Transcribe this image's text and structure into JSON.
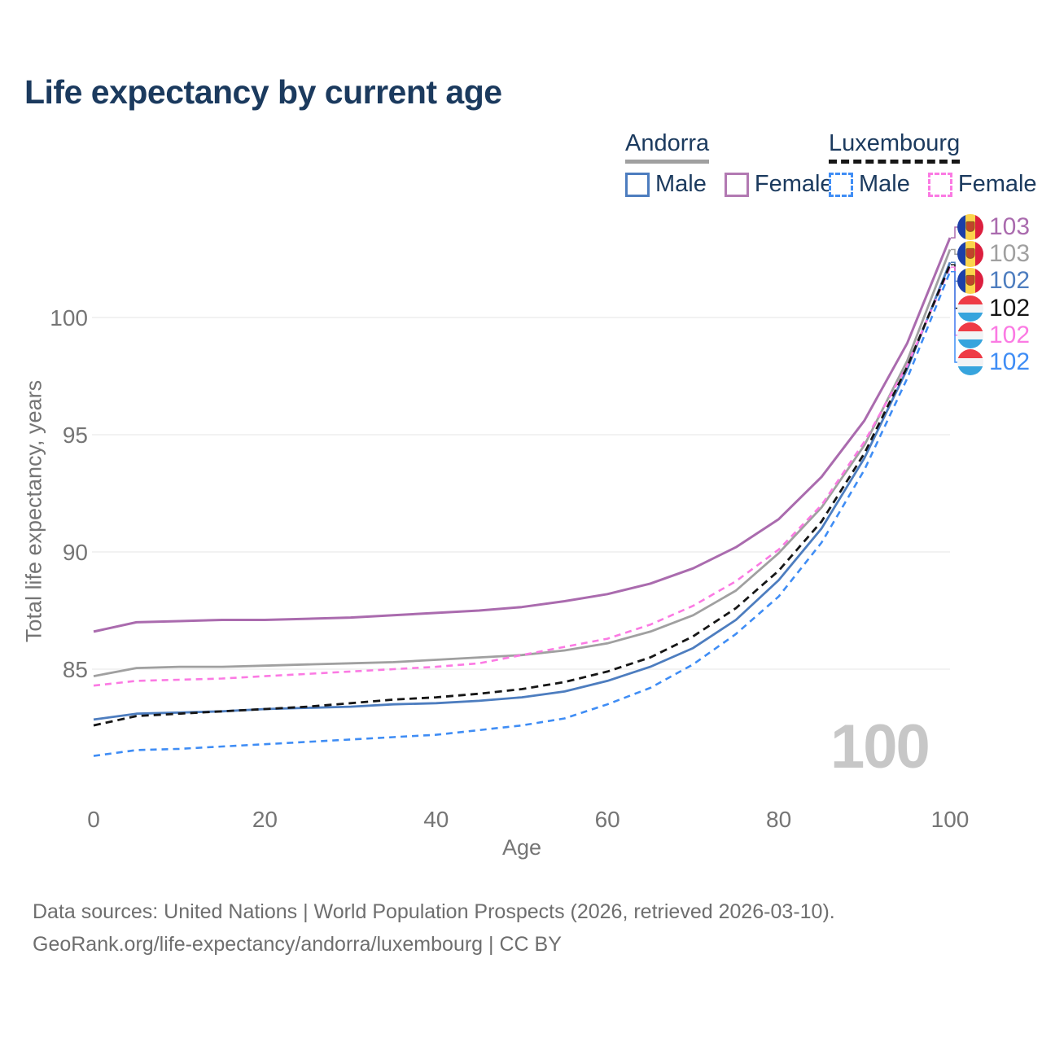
{
  "title": "Life expectancy by current age",
  "watermark": "100",
  "legend": {
    "groups": [
      {
        "label": "Andorra",
        "style": "solid",
        "underline_color": "#a0a0a0",
        "items": [
          {
            "label": "Male",
            "color": "#4d7dbf",
            "dashed": false
          },
          {
            "label": "Female",
            "color": "#b279b2",
            "dashed": false
          }
        ]
      },
      {
        "label": "Luxembourg",
        "style": "dashed",
        "underline_color": "#161616",
        "items": [
          {
            "label": "Male",
            "color": "#3f8df5",
            "dashed": true
          },
          {
            "label": "Female",
            "color": "#fb7ae3",
            "dashed": true
          }
        ]
      }
    ]
  },
  "footer": {
    "line1": "Data sources: United Nations | World Population Prospects (2026, retrieved 2026-03-10).",
    "line2": "GeoRank.org/life-expectancy/andorra/luxembourg | CC BY"
  },
  "chart_data": {
    "type": "line",
    "title": "Life expectancy by current age",
    "xlabel": "Age",
    "ylabel": "Total life expectancy, years",
    "x_ticks": [
      0,
      20,
      40,
      60,
      80,
      100
    ],
    "y_ticks": [
      85,
      90,
      95,
      100
    ],
    "xlim": [
      0,
      100
    ],
    "ylim": [
      81,
      104
    ],
    "grid": "horizontal-only",
    "gridline_color": "#ededed",
    "axis_text_color": "#757575",
    "x": [
      0,
      5,
      10,
      15,
      20,
      25,
      30,
      35,
      40,
      45,
      50,
      55,
      60,
      65,
      70,
      75,
      80,
      85,
      90,
      95,
      100
    ],
    "series": [
      {
        "id": "andorra-all",
        "name": "Andorra",
        "country": "Andorra",
        "sex": "All",
        "color": "#a0a0a0",
        "dash": null,
        "width": 2.8,
        "values": [
          84.7,
          85.05,
          85.1,
          85.1,
          85.15,
          85.2,
          85.25,
          85.3,
          85.4,
          85.5,
          85.6,
          85.8,
          86.1,
          86.6,
          87.3,
          88.35,
          89.95,
          91.9,
          94.55,
          98.15,
          102.9
        ]
      },
      {
        "id": "andorra-female",
        "name": "Andorra Female",
        "country": "Andorra",
        "sex": "Female",
        "color": "#aa6bae",
        "dash": null,
        "width": 3,
        "values": [
          86.6,
          87.0,
          87.05,
          87.1,
          87.1,
          87.15,
          87.2,
          87.3,
          87.4,
          87.5,
          87.65,
          87.9,
          88.2,
          88.65,
          89.3,
          90.2,
          91.4,
          93.2,
          95.6,
          98.9,
          103.4
        ]
      },
      {
        "id": "andorra-male",
        "name": "Andorra Male",
        "country": "Andorra",
        "sex": "Male",
        "color": "#4d7dbf",
        "dash": null,
        "width": 2.8,
        "values": [
          82.85,
          83.1,
          83.15,
          83.2,
          83.3,
          83.35,
          83.4,
          83.5,
          83.55,
          83.65,
          83.8,
          84.05,
          84.5,
          85.1,
          85.9,
          87.1,
          88.8,
          91.0,
          94.0,
          97.8,
          102.35
        ]
      },
      {
        "id": "luxembourg-female",
        "name": "Luxembourg Female",
        "country": "Luxembourg",
        "sex": "Female",
        "color": "#fb7ae3",
        "dash": "8 6",
        "width": 2.6,
        "values": [
          84.3,
          84.5,
          84.55,
          84.6,
          84.7,
          84.8,
          84.9,
          85.0,
          85.1,
          85.25,
          85.6,
          85.95,
          86.3,
          86.9,
          87.7,
          88.75,
          90.1,
          92.0,
          94.7,
          97.95,
          102.15
        ]
      },
      {
        "id": "luxembourg-all",
        "name": "Luxembourg",
        "country": "Luxembourg",
        "sex": "All",
        "color": "#161616",
        "dash": "9 6",
        "width": 2.8,
        "values": [
          82.6,
          83.0,
          83.1,
          83.2,
          83.3,
          83.4,
          83.55,
          83.7,
          83.8,
          83.95,
          84.15,
          84.45,
          84.9,
          85.5,
          86.4,
          87.6,
          89.2,
          91.3,
          94.2,
          97.9,
          102.25
        ]
      },
      {
        "id": "luxembourg-male",
        "name": "Luxembourg Male",
        "country": "Luxembourg",
        "sex": "Male",
        "color": "#3f8df5",
        "dash": "8 6",
        "width": 2.6,
        "values": [
          81.3,
          81.55,
          81.6,
          81.7,
          81.8,
          81.9,
          82.0,
          82.1,
          82.2,
          82.4,
          82.6,
          82.9,
          83.5,
          84.2,
          85.2,
          86.5,
          88.1,
          90.4,
          93.5,
          97.4,
          101.95
        ]
      }
    ],
    "end_labels": [
      {
        "series_id": "andorra-female",
        "value": "103",
        "flag": "andorra",
        "color": "#aa6bae"
      },
      {
        "series_id": "andorra-all",
        "value": "103",
        "flag": "andorra",
        "color": "#a0a0a0"
      },
      {
        "series_id": "andorra-male",
        "value": "102",
        "flag": "andorra",
        "color": "#4d7dbf"
      },
      {
        "series_id": "luxembourg-all",
        "value": "102",
        "flag": "luxembourg",
        "color": "#161616"
      },
      {
        "series_id": "luxembourg-female",
        "value": "102",
        "flag": "luxembourg",
        "color": "#fb7ae3"
      },
      {
        "series_id": "luxembourg-male",
        "value": "102",
        "flag": "luxembourg",
        "color": "#3f8df5"
      }
    ]
  }
}
